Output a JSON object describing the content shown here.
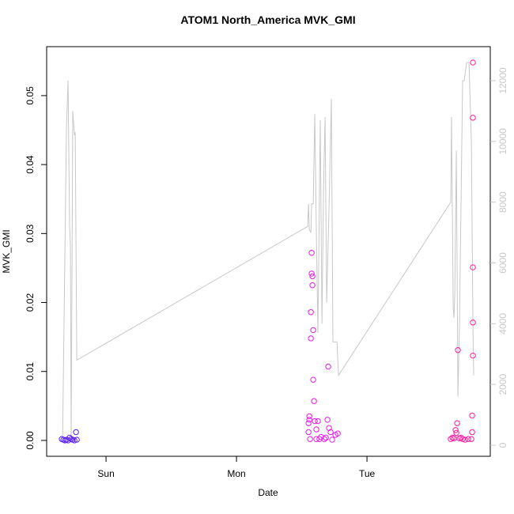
{
  "chart_data": {
    "type": "scatter",
    "title": "ATOM1 North_America MVK_GMI",
    "x_label": "Date",
    "y_label": "MVK_GMI",
    "xlim": [
      -0.455,
      2.945
    ],
    "xticks": [
      {
        "value": 0,
        "label": "Sun"
      },
      {
        "value": 1,
        "label": "Mon"
      },
      {
        "value": 2,
        "label": "Tue"
      }
    ],
    "ylim": [
      -0.0023,
      0.0571
    ],
    "yticks": [
      {
        "value": 0,
        "label": "0.00"
      },
      {
        "value": 0.01,
        "label": "0.01"
      },
      {
        "value": 0.02,
        "label": "0.02"
      },
      {
        "value": 0.03,
        "label": "0.03"
      },
      {
        "value": 0.04,
        "label": "0.04"
      },
      {
        "value": 0.05,
        "label": "0.05"
      }
    ],
    "y2lim": [
      -364,
      13119
    ],
    "y2ticks": [
      0,
      2000,
      4000,
      6000,
      8000,
      10000,
      12000
    ],
    "y2_color": "#c8c8c8",
    "series": [
      {
        "type": "scatter",
        "x": [
          -0.339,
          -0.327,
          -0.315,
          -0.303,
          -0.291,
          -0.279,
          -0.267,
          -0.255,
          -0.242,
          -0.23,
          -0.224,
          1.576,
          1.576,
          1.582,
          1.582,
          1.57,
          1.57,
          1.588,
          1.588,
          1.594,
          1.558,
          1.558,
          1.552,
          1.552,
          1.564,
          1.6,
          1.612,
          1.624,
          1.636,
          1.648,
          1.673,
          1.697,
          1.703,
          1.709,
          1.721,
          1.733,
          1.758,
          1.776,
          1.685,
          1.612,
          2.642,
          2.655,
          2.667,
          2.679,
          2.685,
          2.691,
          2.697,
          2.709,
          2.721,
          2.733,
          2.752,
          2.776,
          2.8,
          2.806,
          2.806,
          2.812,
          2.812,
          2.812,
          2.812,
          2.812
        ],
        "values": [
          0.0002,
          0.0001,
          0.0,
          0.0001,
          0.0,
          0.0004,
          0.0002,
          0.0001,
          0.0,
          0.0012,
          0.0001,
          0.0272,
          0.0242,
          0.0238,
          0.0225,
          0.0186,
          0.0148,
          0.016,
          0.0088,
          0.0057,
          0.0035,
          0.003,
          0.0025,
          0.0012,
          0.0002,
          0.0028,
          0.0016,
          0.0028,
          0.0002,
          0.0005,
          0.0002,
          0.003,
          0.0107,
          0.0018,
          0.0012,
          0.0001,
          0.0008,
          0.001,
          0.0004,
          0.0002,
          0.0002,
          0.0004,
          0.0003,
          0.0015,
          0.0011,
          0.0025,
          0.0131,
          0.0003,
          0.0004,
          0.0002,
          0.0001,
          0.0002,
          0.0002,
          0.0012,
          0.0036,
          0.0123,
          0.0171,
          0.0251,
          0.0468,
          0.0548
        ],
        "colors": [
          "#5a1aff",
          "#5a1aff",
          "#5a1aff",
          "#5a1aff",
          "#5a1aff",
          "#5a1aff",
          "#5a1aff",
          "#5a1aff",
          "#5a1aff",
          "#5a1aff",
          "#5a1aff",
          "#e61ae6",
          "#e61ae6",
          "#e61ae6",
          "#e61ae6",
          "#e61ae6",
          "#e61ae6",
          "#e61ae6",
          "#e61ae6",
          "#e61ae6",
          "#e61ae6",
          "#e61ae6",
          "#e61ae6",
          "#e61ae6",
          "#e61ae6",
          "#e61ae6",
          "#e61ae6",
          "#e61ae6",
          "#e61ae6",
          "#e61ae6",
          "#e61ae6",
          "#e61ae6",
          "#e61ae6",
          "#e61ae6",
          "#e61ae6",
          "#e61ae6",
          "#e61ae6",
          "#e61ae6",
          "#e61ae6",
          "#e61ae6",
          "#ff1aa0",
          "#ff1aa0",
          "#ff1aa0",
          "#ff1aa0",
          "#ff1aa0",
          "#ff1aa0",
          "#ff1aa0",
          "#ff1aa0",
          "#ff1aa0",
          "#ff1aa0",
          "#ff1aa0",
          "#ff1aa0",
          "#ff1aa0",
          "#ff1aa0",
          "#ff1aa0",
          "#ff1aa0",
          "#ff1aa0",
          "#ff1aa0",
          "#ff1aa0",
          "#ff1aa0"
        ]
      },
      {
        "type": "line",
        "axis": "y2",
        "color": "#c8c8c8",
        "x": [
          -0.333,
          -0.303,
          -0.291,
          -0.279,
          -0.273,
          -0.267,
          -0.255,
          -0.242,
          -0.236,
          -0.224,
          1.545,
          1.552,
          1.558,
          1.57,
          1.576,
          1.588,
          1.6,
          1.612,
          1.624,
          1.642,
          1.655,
          1.667,
          1.679,
          1.691,
          1.709,
          1.727,
          1.739,
          1.752,
          1.77,
          1.782,
          2.642,
          2.648,
          2.661,
          2.667,
          2.673,
          2.685,
          2.697,
          2.709,
          2.733,
          2.745,
          2.764,
          2.782,
          2.8,
          2.812,
          2.818
        ],
        "values": [
          150,
          10500,
          12000,
          7200,
          6600,
          200,
          11000,
          10200,
          10300,
          2800,
          7200,
          7950,
          7100,
          7000,
          7950,
          7950,
          10900,
          7000,
          3700,
          10700,
          4000,
          8500,
          10800,
          4700,
          7800,
          11400,
          3400,
          3400,
          3400,
          2300,
          8000,
          10800,
          4500,
          4200,
          5000,
          9700,
          1600,
          4000,
          12000,
          12000,
          12600,
          12600,
          10000,
          4000,
          2300
        ]
      }
    ]
  }
}
